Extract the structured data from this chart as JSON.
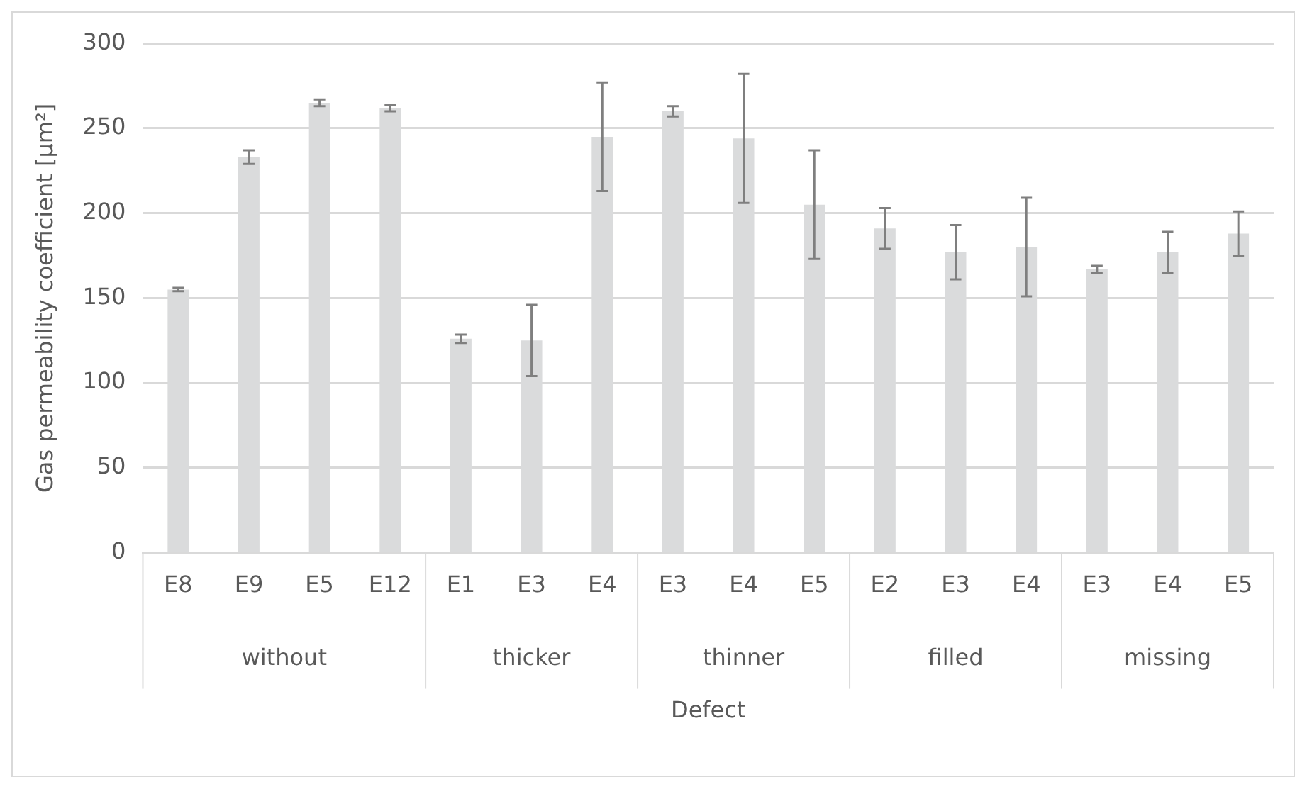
{
  "chart_data": {
    "type": "bar",
    "xlabel": "Defect",
    "ylabel": "Gas permeability coefficient [µm²]",
    "categories": [
      "E8",
      "E9",
      "E5",
      "E12",
      "E1",
      "E3",
      "E4",
      "E3",
      "E4",
      "E5",
      "E2",
      "E3",
      "E4",
      "E3",
      "E4",
      "E5"
    ],
    "values": [
      155,
      233,
      265,
      262,
      126,
      125,
      245,
      260,
      244,
      205,
      191,
      177,
      180,
      167,
      177,
      188
    ],
    "errors": [
      1,
      4,
      2,
      2,
      2.5,
      21,
      32,
      3,
      38,
      32,
      12,
      16,
      29,
      2,
      12,
      13
    ],
    "color": "#dadbdc",
    "ylim": [
      0,
      300
    ],
    "yticks": [
      0,
      50,
      100,
      150,
      200,
      250,
      300
    ],
    "grid": "y",
    "legend": false,
    "annotations": [
      "without",
      "thicker",
      "thinner",
      "filled",
      "missing"
    ]
  }
}
